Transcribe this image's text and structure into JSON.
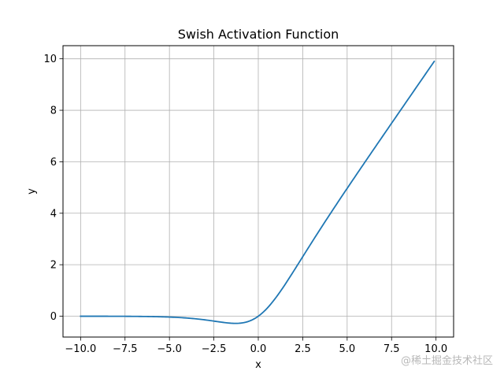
{
  "chart_data": {
    "type": "line",
    "title": "Swish Activation Function",
    "xlabel": "x",
    "ylabel": "y",
    "xlim": [
      -10.99,
      10.99
    ],
    "ylim": [
      -0.81,
      10.51
    ],
    "xticks": [
      -10.0,
      -7.5,
      -5.0,
      -2.5,
      0.0,
      2.5,
      5.0,
      7.5,
      10.0
    ],
    "xtick_labels": [
      "−10.0",
      "−7.5",
      "−5.0",
      "−2.5",
      "0.0",
      "2.5",
      "5.0",
      "7.5",
      "10.0"
    ],
    "yticks": [
      0,
      2,
      4,
      6,
      8,
      10
    ],
    "ytick_labels": [
      "0",
      "2",
      "4",
      "6",
      "8",
      "10"
    ],
    "grid": true,
    "function": "x * sigmoid(x)",
    "x_range": [
      -10.0,
      9.9
    ],
    "sample_step": 0.1,
    "color": "#1f77b4",
    "series": [
      {
        "name": "",
        "x": [
          -10,
          -8,
          -6,
          -5,
          -4,
          -3,
          -2.5,
          -2,
          -1.5,
          -1.25,
          -1,
          -0.5,
          0,
          0.5,
          1,
          1.5,
          2,
          2.5,
          3,
          4,
          5,
          6,
          8,
          9.9
        ],
        "y": [
          -0.0005,
          -0.0027,
          -0.0148,
          -0.0335,
          -0.0719,
          -0.1423,
          -0.1896,
          -0.2384,
          -0.2738,
          -0.2785,
          -0.2689,
          -0.1888,
          0.0,
          0.3112,
          0.7311,
          1.2262,
          1.7616,
          2.3104,
          2.8577,
          3.9281,
          4.9665,
          5.9852,
          7.9973,
          9.8995
        ]
      }
    ]
  },
  "watermark": "@稀土掘金技术社区"
}
